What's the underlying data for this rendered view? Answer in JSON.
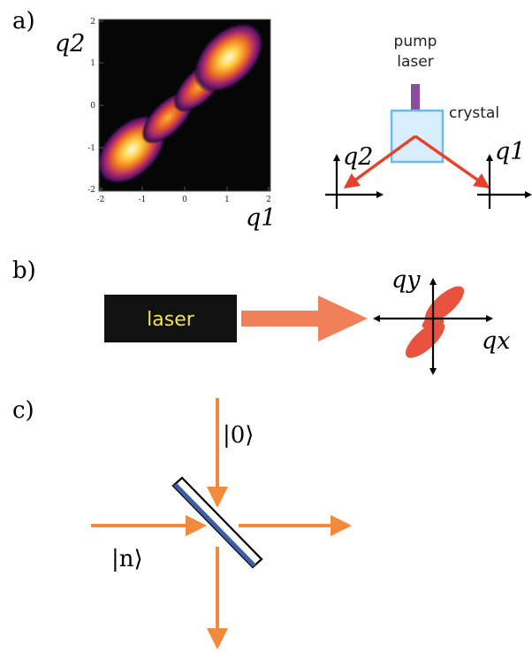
{
  "panels": {
    "a": {
      "label": "a)",
      "axis_label_x": "q1",
      "axis_label_y": "q2",
      "x_ticks": [
        "-2",
        "-1",
        "0",
        "1",
        "2"
      ],
      "y_ticks": [
        "2",
        "1",
        "0",
        "-1",
        "-2"
      ],
      "setup": {
        "pump_label_line1": "pump",
        "pump_label_line2": "laser",
        "crystal_label": "crystal",
        "left_axis_label": "q2",
        "right_axis_label": "q1"
      }
    },
    "b": {
      "label": "b)",
      "laser_label": "laser",
      "qy_label": "qy",
      "qx_label": "qx"
    },
    "c": {
      "label": "c)",
      "top_input_label": "|0⟩",
      "left_input_label": "|n⟩"
    }
  },
  "colors": {
    "arrow_orange": "#f28a3c",
    "arrow_red": "#e8402a",
    "crystal_fill": "#d9eefb",
    "crystal_edge": "#6bbde8",
    "laser_text": "#f3e04a",
    "laser_box": "#111111",
    "beam_splitter": "#3d5fa8",
    "pump_purple": "#7b2c8f"
  }
}
